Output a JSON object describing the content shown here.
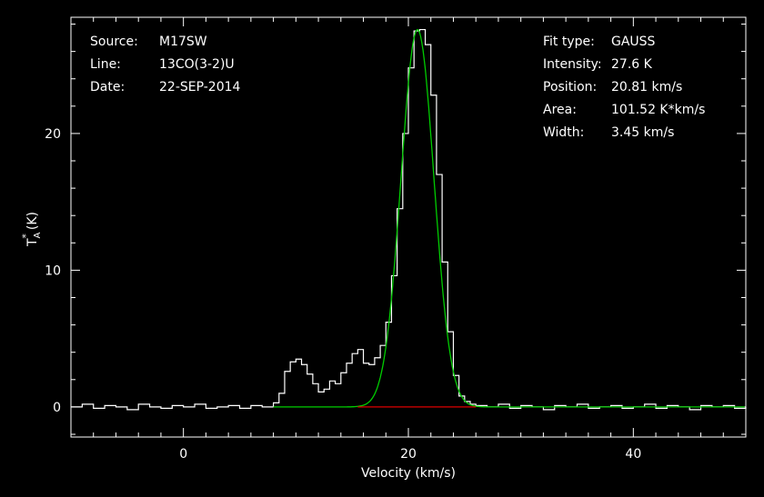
{
  "chart_data": {
    "type": "line",
    "xlabel": "Velocity (km/s)",
    "ylabel": "T_A^* (K)",
    "xlim": [
      -10,
      50
    ],
    "ylim": [
      -2.2,
      28.5
    ],
    "x_ticks": [
      0,
      20,
      40
    ],
    "y_ticks": [
      0,
      10,
      20
    ],
    "grid": false,
    "series": [
      {
        "role": "observed-spectrum",
        "color": "#ffffff",
        "step": true,
        "x": [
          -10,
          -9,
          -8,
          -7,
          -6,
          -5,
          -4,
          -3,
          -2,
          -1,
          0,
          1,
          2,
          3,
          4,
          5,
          6,
          7,
          8,
          8.5,
          9,
          9.5,
          10,
          10.5,
          11,
          11.5,
          12,
          12.5,
          13,
          13.5,
          14,
          14.5,
          15,
          15.5,
          16,
          16.5,
          17,
          17.5,
          18,
          18.5,
          19,
          19.5,
          20,
          20.5,
          21,
          21.5,
          22,
          22.5,
          23,
          23.5,
          24,
          24.5,
          25,
          25.5,
          26,
          27,
          28,
          29,
          30,
          31,
          32,
          33,
          34,
          35,
          36,
          37,
          38,
          39,
          40,
          41,
          42,
          43,
          44,
          45,
          46,
          47,
          48,
          49,
          50
        ],
        "y": [
          0.0,
          0.2,
          -0.1,
          0.1,
          0.0,
          -0.2,
          0.2,
          0.0,
          -0.1,
          0.1,
          0.0,
          0.2,
          -0.1,
          0.0,
          0.1,
          -0.1,
          0.1,
          0.0,
          0.3,
          1.0,
          2.6,
          3.3,
          3.5,
          3.1,
          2.4,
          1.7,
          1.1,
          1.3,
          1.9,
          1.7,
          2.5,
          3.2,
          3.9,
          4.2,
          3.2,
          3.1,
          3.6,
          4.5,
          6.2,
          9.6,
          14.5,
          20.0,
          24.8,
          27.5,
          27.6,
          26.5,
          22.8,
          17.0,
          10.6,
          5.5,
          2.3,
          0.8,
          0.4,
          0.2,
          0.1,
          0.0,
          0.2,
          -0.1,
          0.1,
          0.0,
          -0.2,
          0.1,
          0.0,
          0.2,
          -0.1,
          0.0,
          0.1,
          -0.1,
          0.0,
          0.2,
          -0.1,
          0.1,
          0.0,
          -0.2,
          0.1,
          0.0,
          0.1,
          -0.1,
          0.0
        ]
      },
      {
        "role": "gaussian-fit",
        "color": "#00cc00",
        "fit": {
          "amplitude": 27.6,
          "center": 20.81,
          "fwhm": 3.45
        },
        "x_range": [
          8,
          50
        ]
      },
      {
        "role": "baseline",
        "color": "#dd0000",
        "x": [
          15.5,
          26.0
        ],
        "y": [
          0,
          0
        ]
      }
    ]
  },
  "info_left": [
    {
      "key": "Source:",
      "value": "M17SW"
    },
    {
      "key": "Line:",
      "value": "13CO(3-2)U"
    },
    {
      "key": "Date:",
      "value": "22-SEP-2014"
    }
  ],
  "info_right": [
    {
      "key": "Fit type:",
      "value": "GAUSS"
    },
    {
      "key": "Intensity:",
      "value": "27.6 K"
    },
    {
      "key": "Position:",
      "value": "20.81 km/s"
    },
    {
      "key": "Area:",
      "value": "101.52 K*km/s"
    },
    {
      "key": "Width:",
      "value": "3.45 km/s"
    }
  ],
  "colors": {
    "background": "#000000",
    "axes": "#ffffff"
  }
}
